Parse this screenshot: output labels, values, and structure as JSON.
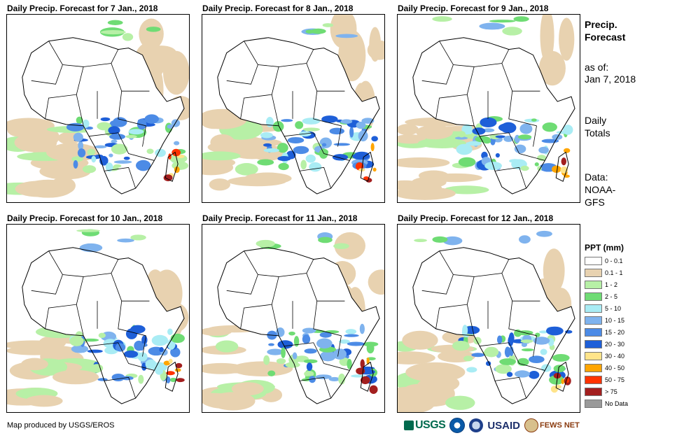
{
  "panels": [
    {
      "title": "Daily Precip. Forecast for 7 Jan., 2018"
    },
    {
      "title": "Daily Precip. Forecast for 8 Jan., 2018"
    },
    {
      "title": "Daily Precip. Forecast for 9 Jan., 2018"
    },
    {
      "title": "Daily Precip. Forecast for 10 Jan., 2018"
    },
    {
      "title": "Daily Precip. Forecast for 11 Jan., 2018"
    },
    {
      "title": "Daily Precip. Forecast for 12 Jan., 2018"
    }
  ],
  "side": {
    "heading_line1": "Precip.",
    "heading_line2": "Forecast",
    "asof_line1": "as of:",
    "asof_line2": "Jan 7, 2018",
    "totals_line1": "Daily",
    "totals_line2": "Totals",
    "data_line1": "Data:",
    "data_line2": "NOAA-",
    "data_line3": "GFS"
  },
  "legend": {
    "title": "PPT (mm)",
    "items": [
      {
        "label": "0 - 0.1",
        "color": "#ffffff"
      },
      {
        "label": "0.1 - 1",
        "color": "#e8d2b0"
      },
      {
        "label": "1 - 2",
        "color": "#b7f0a6"
      },
      {
        "label": "2 - 5",
        "color": "#6fdc74"
      },
      {
        "label": "5 - 10",
        "color": "#a9ecf4"
      },
      {
        "label": "10 - 15",
        "color": "#7fb3ee"
      },
      {
        "label": "15 - 20",
        "color": "#4c8be6"
      },
      {
        "label": "20 - 30",
        "color": "#1e5fd8"
      },
      {
        "label": "30 - 40",
        "color": "#ffe48a"
      },
      {
        "label": "40 - 50",
        "color": "#ffa500"
      },
      {
        "label": "50 - 75",
        "color": "#ff3300"
      },
      {
        "label": "> 75",
        "color": "#a31f1f"
      },
      {
        "label": "No Data",
        "color": "#9a9a9a"
      }
    ]
  },
  "credit": "Map produced by USGS/EROS",
  "logos": {
    "usgs": "USGS",
    "usaid": "USAID",
    "fews": "FEWS NET"
  }
}
